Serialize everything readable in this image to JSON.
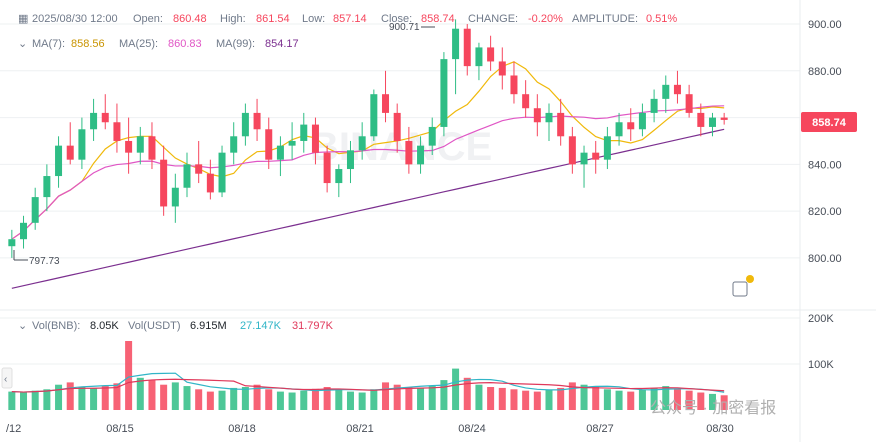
{
  "header": {
    "date": "2025/08/30 12:00",
    "open_label": "Open:",
    "open": "860.48",
    "high_label": "High:",
    "high": "861.54",
    "low_label": "Low:",
    "low": "857.14",
    "close_label": "Close:",
    "close": "858.74",
    "change_label": "CHANGE:",
    "change": "-0.20%",
    "amplitude_label": "AMPLITUDE:",
    "amplitude": "0.51%"
  },
  "ma_legend": {
    "ma7_label": "MA(7):",
    "ma7": "858.56",
    "ma25_label": "MA(25):",
    "ma25": "860.83",
    "ma99_label": "MA(99):",
    "ma99": "854.17"
  },
  "vol_legend": {
    "vol_label": "Vol(BNB):",
    "vol": "8.05K",
    "volusdt_label": "Vol(USDT)",
    "volusdt": "6.915M",
    "ma1": "27.147K",
    "ma2": "31.797K"
  },
  "price_tag": "858.74",
  "high_marker": "900.71",
  "low_marker": "797.73",
  "watermark": "公众号 · 加密看报",
  "colors": {
    "up": "#2ebd85",
    "down": "#f6465d",
    "ma7": "#f0b90b",
    "ma25": "#e056c5",
    "ma99": "#7b2f8f"
  },
  "chart_data": {
    "type": "candlestick",
    "price_axis": {
      "ticks": [
        800,
        820,
        840,
        860,
        880,
        900
      ],
      "ylim": [
        782,
        906
      ]
    },
    "volume_axis": {
      "ticks": [
        "100K",
        "200K"
      ],
      "ylim": [
        0,
        200000
      ]
    },
    "x_ticks": [
      "/12",
      "08/15",
      "08/18",
      "08/21",
      "08/24",
      "08/27",
      "08/30"
    ],
    "candles": [
      [
        805,
        812,
        800,
        808
      ],
      [
        808,
        818,
        804,
        815
      ],
      [
        815,
        830,
        812,
        826
      ],
      [
        826,
        840,
        820,
        835
      ],
      [
        835,
        852,
        830,
        848
      ],
      [
        848,
        858,
        840,
        842
      ],
      [
        842,
        860,
        838,
        855
      ],
      [
        855,
        868,
        850,
        862
      ],
      [
        862,
        870,
        855,
        858
      ],
      [
        858,
        866,
        845,
        850
      ],
      [
        850,
        860,
        836,
        845
      ],
      [
        845,
        856,
        840,
        852
      ],
      [
        852,
        858,
        838,
        842
      ],
      [
        842,
        848,
        818,
        822
      ],
      [
        822,
        836,
        815,
        830
      ],
      [
        830,
        845,
        826,
        840
      ],
      [
        840,
        850,
        832,
        836
      ],
      [
        836,
        842,
        825,
        828
      ],
      [
        828,
        848,
        826,
        845
      ],
      [
        845,
        858,
        840,
        852
      ],
      [
        852,
        866,
        848,
        862
      ],
      [
        862,
        868,
        850,
        855
      ],
      [
        855,
        860,
        838,
        842
      ],
      [
        842,
        852,
        835,
        848
      ],
      [
        848,
        858,
        842,
        850
      ],
      [
        850,
        862,
        845,
        857
      ],
      [
        857,
        860,
        840,
        845
      ],
      [
        845,
        848,
        828,
        832
      ],
      [
        832,
        840,
        826,
        838
      ],
      [
        838,
        850,
        832,
        846
      ],
      [
        846,
        858,
        842,
        852
      ],
      [
        852,
        872,
        850,
        870
      ],
      [
        870,
        880,
        858,
        862
      ],
      [
        862,
        866,
        845,
        850
      ],
      [
        850,
        856,
        836,
        840
      ],
      [
        840,
        852,
        836,
        848
      ],
      [
        848,
        860,
        844,
        856
      ],
      [
        856,
        888,
        852,
        885
      ],
      [
        885,
        902,
        870,
        898
      ],
      [
        898,
        900,
        878,
        882
      ],
      [
        882,
        892,
        876,
        890
      ],
      [
        890,
        895,
        880,
        884
      ],
      [
        884,
        890,
        872,
        878
      ],
      [
        878,
        884,
        866,
        870
      ],
      [
        870,
        876,
        860,
        864
      ],
      [
        864,
        870,
        852,
        858
      ],
      [
        858,
        866,
        850,
        862
      ],
      [
        862,
        868,
        848,
        852
      ],
      [
        852,
        856,
        836,
        840
      ],
      [
        840,
        848,
        830,
        845
      ],
      [
        845,
        850,
        836,
        842
      ],
      [
        842,
        856,
        838,
        852
      ],
      [
        852,
        862,
        848,
        858
      ],
      [
        858,
        864,
        850,
        855
      ],
      [
        855,
        866,
        852,
        862
      ],
      [
        862,
        872,
        858,
        868
      ],
      [
        868,
        878,
        862,
        874
      ],
      [
        874,
        880,
        866,
        870
      ],
      [
        870,
        874,
        860,
        862
      ],
      [
        862,
        866,
        852,
        856
      ],
      [
        856,
        862,
        852,
        860
      ],
      [
        860,
        862,
        857,
        859
      ]
    ],
    "volumes": [
      40,
      38,
      42,
      45,
      55,
      60,
      50,
      48,
      52,
      58,
      150,
      70,
      65,
      55,
      60,
      52,
      45,
      40,
      42,
      48,
      50,
      55,
      45,
      40,
      38,
      42,
      46,
      50,
      44,
      40,
      38,
      45,
      60,
      55,
      50,
      48,
      52,
      65,
      90,
      70,
      55,
      50,
      48,
      45,
      42,
      40,
      44,
      48,
      60,
      55,
      50,
      45,
      42,
      40,
      44,
      48,
      52,
      46,
      42,
      38,
      35,
      32
    ]
  }
}
